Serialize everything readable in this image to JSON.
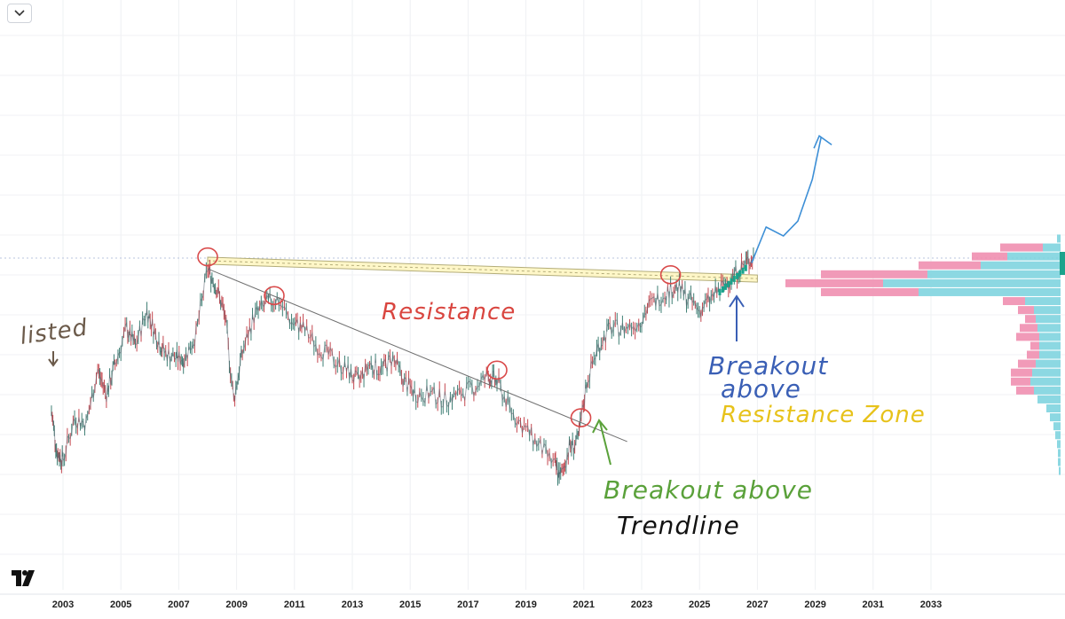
{
  "chart_data": {
    "type": "line",
    "title": "",
    "xlabel": "",
    "ylabel": "",
    "x_ticks": [
      "2003",
      "2005",
      "2007",
      "2009",
      "2011",
      "2013",
      "2015",
      "2017",
      "2019",
      "2021",
      "2023",
      "2025",
      "2027",
      "2029",
      "2031",
      "2033"
    ],
    "grid": true,
    "series": [
      {
        "values_by_year": [
          [
            2002.6,
            24
          ],
          [
            2002.8,
            10
          ],
          [
            2003.0,
            8
          ],
          [
            2003.4,
            22
          ],
          [
            2003.8,
            20
          ],
          [
            2004.2,
            38
          ],
          [
            2004.5,
            30
          ],
          [
            2004.8,
            40
          ],
          [
            2005.2,
            52
          ],
          [
            2005.5,
            46
          ],
          [
            2005.9,
            58
          ],
          [
            2006.2,
            50
          ],
          [
            2006.5,
            44
          ],
          [
            2006.9,
            42
          ],
          [
            2007.2,
            42
          ],
          [
            2007.6,
            50
          ],
          [
            2008.0,
            72
          ],
          [
            2008.3,
            66
          ],
          [
            2008.6,
            56
          ],
          [
            2008.9,
            28
          ],
          [
            2009.2,
            44
          ],
          [
            2009.6,
            56
          ],
          [
            2010.0,
            60
          ],
          [
            2010.4,
            62
          ],
          [
            2010.9,
            54
          ],
          [
            2011.3,
            52
          ],
          [
            2011.8,
            46
          ],
          [
            2012.3,
            42
          ],
          [
            2012.8,
            38
          ],
          [
            2013.2,
            34
          ],
          [
            2013.6,
            40
          ],
          [
            2014.0,
            38
          ],
          [
            2014.4,
            42
          ],
          [
            2014.8,
            34
          ],
          [
            2015.2,
            30
          ],
          [
            2015.7,
            30
          ],
          [
            2016.2,
            28
          ],
          [
            2016.7,
            30
          ],
          [
            2017.2,
            32
          ],
          [
            2017.7,
            36
          ],
          [
            2018.0,
            34
          ],
          [
            2018.5,
            24
          ],
          [
            2019.0,
            18
          ],
          [
            2019.5,
            12
          ],
          [
            2020.0,
            6
          ],
          [
            2020.2,
            2
          ],
          [
            2020.5,
            12
          ],
          [
            2020.8,
            14
          ],
          [
            2021.1,
            34
          ],
          [
            2021.5,
            46
          ],
          [
            2021.9,
            52
          ],
          [
            2022.4,
            52
          ],
          [
            2022.9,
            54
          ],
          [
            2023.3,
            60
          ],
          [
            2023.8,
            64
          ],
          [
            2024.2,
            66
          ],
          [
            2024.6,
            62
          ],
          [
            2025.0,
            58
          ],
          [
            2025.4,
            62
          ],
          [
            2025.8,
            66
          ],
          [
            2026.2,
            70
          ],
          [
            2026.6,
            74
          ],
          [
            2026.9,
            76
          ]
        ]
      }
    ],
    "trendlines": [
      {
        "name": "resistance-zone",
        "from": [
          2008.0,
          75
        ],
        "to": [
          2027.0,
          69
        ]
      },
      {
        "name": "downtrend-line",
        "from": [
          2008.0,
          72
        ],
        "to": [
          2022.5,
          14
        ]
      }
    ],
    "markers": [
      {
        "x": 2008.0,
        "y": 76
      },
      {
        "x": 2010.3,
        "y": 63
      },
      {
        "x": 2018.0,
        "y": 38
      },
      {
        "x": 2020.9,
        "y": 22
      },
      {
        "x": 2024.0,
        "y": 70
      }
    ],
    "projection": [
      [
        2026.8,
        74
      ],
      [
        2027.3,
        86
      ],
      [
        2027.9,
        83
      ],
      [
        2028.4,
        88
      ],
      [
        2028.9,
        102
      ],
      [
        2029.2,
        116
      ]
    ],
    "volume_profile": [
      {
        "y": 82,
        "buy": 4,
        "sell": 0
      },
      {
        "y": 79,
        "buy": 20,
        "sell": 48
      },
      {
        "y": 76,
        "buy": 60,
        "sell": 40
      },
      {
        "y": 73,
        "buy": 90,
        "sell": 70
      },
      {
        "y": 70,
        "buy": 150,
        "sell": 120
      },
      {
        "y": 67,
        "buy": 200,
        "sell": 110
      },
      {
        "y": 64,
        "buy": 160,
        "sell": 110
      },
      {
        "y": 61,
        "buy": 40,
        "sell": 25
      },
      {
        "y": 58,
        "buy": 30,
        "sell": 18
      },
      {
        "y": 55,
        "buy": 28,
        "sell": 12
      },
      {
        "y": 52,
        "buy": 26,
        "sell": 20
      },
      {
        "y": 49,
        "buy": 24,
        "sell": 26
      },
      {
        "y": 46,
        "buy": 24,
        "sell": 10
      },
      {
        "y": 43,
        "buy": 24,
        "sell": 14
      },
      {
        "y": 40,
        "buy": 28,
        "sell": 20
      },
      {
        "y": 37,
        "buy": 32,
        "sell": 24
      },
      {
        "y": 34,
        "buy": 34,
        "sell": 22
      },
      {
        "y": 31,
        "buy": 30,
        "sell": 20
      },
      {
        "y": 28,
        "buy": 26,
        "sell": 0
      },
      {
        "y": 25,
        "buy": 16,
        "sell": 0
      },
      {
        "y": 22,
        "buy": 12,
        "sell": 0
      },
      {
        "y": 19,
        "buy": 8,
        "sell": 0
      },
      {
        "y": 16,
        "buy": 6,
        "sell": 0
      },
      {
        "y": 13,
        "buy": 4,
        "sell": 0
      },
      {
        "y": 10,
        "buy": 3,
        "sell": 0
      },
      {
        "y": 7,
        "buy": 3,
        "sell": 0
      },
      {
        "y": 4,
        "buy": 2,
        "sell": 0
      }
    ],
    "annotations": {
      "listed": "listed",
      "resistance": "Resistance",
      "breakout_resistance_1": "Breakout",
      "breakout_resistance_2": "above",
      "breakout_resistance_3": "Resistance Zone",
      "breakout_trend_1": "Breakout above",
      "breakout_trend_2": "Trendline"
    },
    "colors": {
      "price": "#5b6270",
      "marker": "#d94a4a",
      "trendline": "#6f6f6f",
      "zone_fill": "#fff7c8",
      "zone_edge": "#b3ad7a",
      "projection": "#3d8fd6",
      "vp_buy": "#7fd4df",
      "vp_sell": "#ef8fb0",
      "ann_red": "#d9453f",
      "ann_blue": "#3a5fb5",
      "ann_yellow": "#e7c21a",
      "ann_green": "#5aa13a",
      "ann_black": "#111111",
      "ann_brown": "#6b5a4a",
      "current_price": "#1aa38c"
    }
  }
}
